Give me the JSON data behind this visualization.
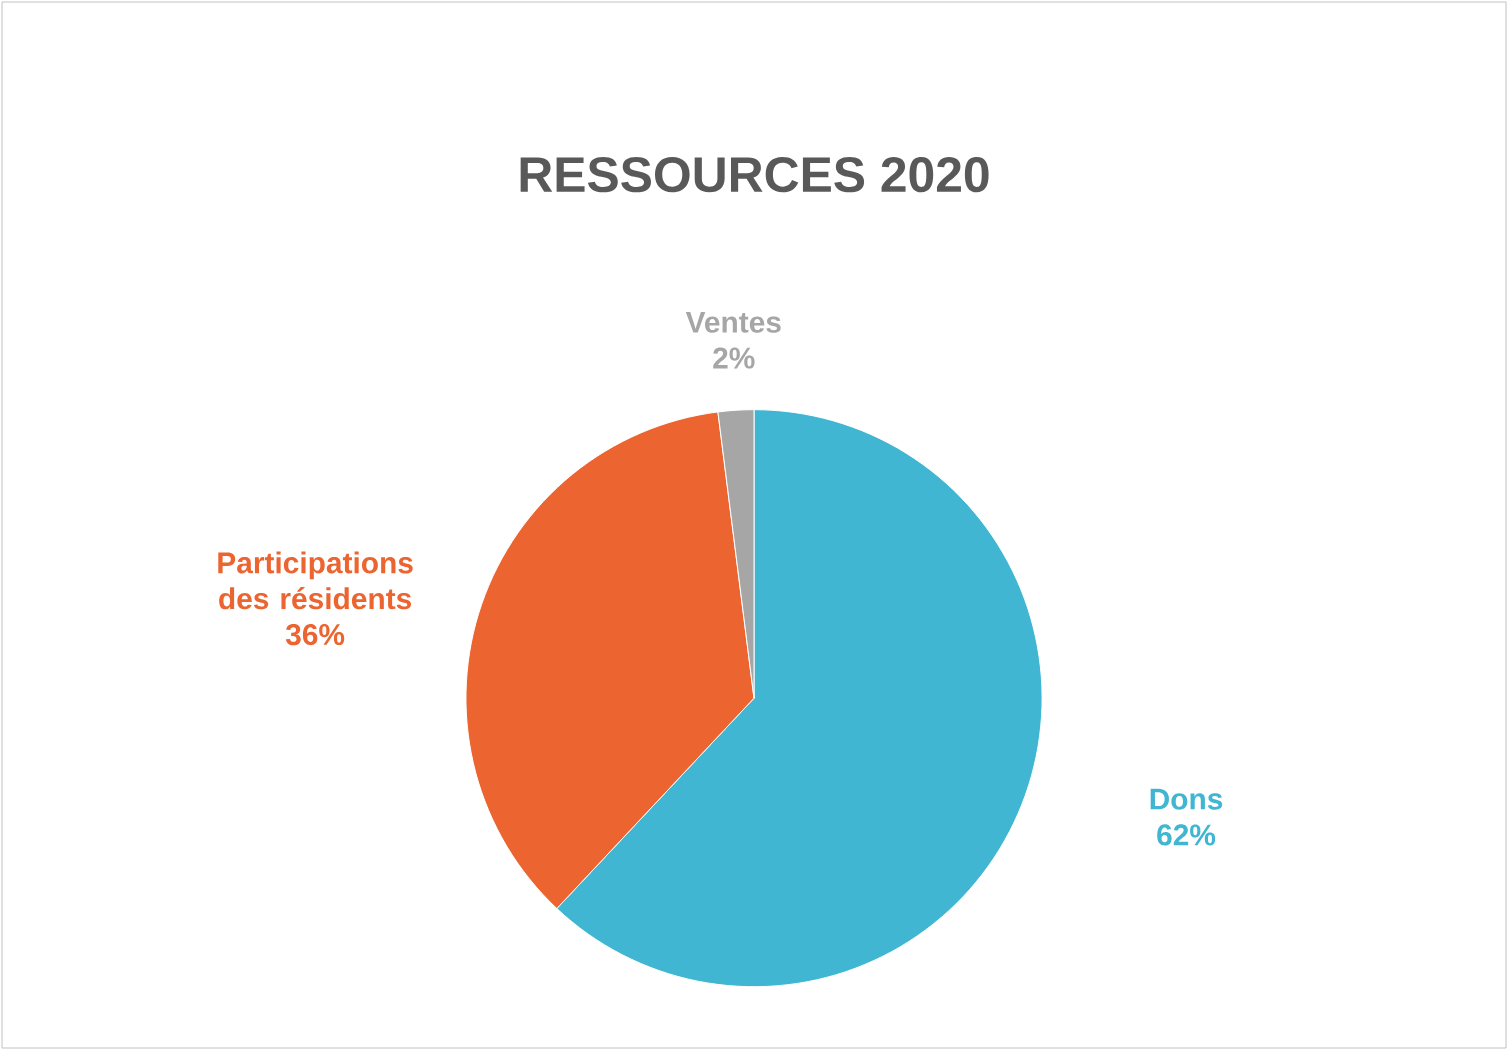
{
  "chart_data": {
    "type": "pie",
    "title": "RESSOURCES 2020",
    "categories": [
      "Dons",
      "Participations des résidents",
      "Ventes"
    ],
    "values": [
      62,
      36,
      2
    ],
    "value_labels": [
      "62%",
      "36%",
      "2%"
    ],
    "colors": [
      "#40b6d2",
      "#ec6530",
      "#a6a6a6"
    ]
  }
}
